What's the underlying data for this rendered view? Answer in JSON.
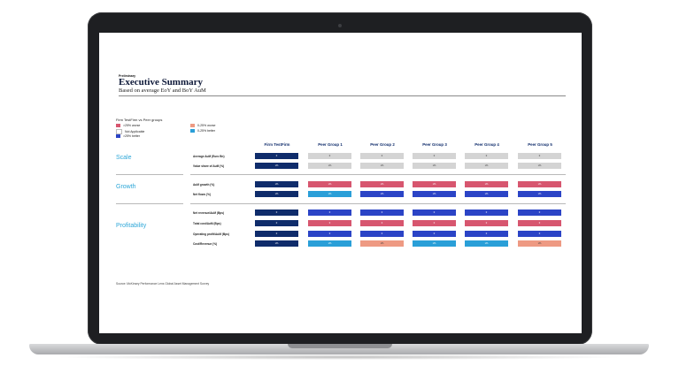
{
  "header": {
    "eyebrow": "Preliminary",
    "title": "Executive Summary",
    "subtitle": "Based on average EoY and BoY AuM"
  },
  "legend": {
    "title": "Firm TestFirm vs Peer groups",
    "items": [
      {
        "label": ">25% worse",
        "color": "#d7566f"
      },
      {
        "label": "Not Applicable",
        "color": "#ffffff"
      },
      {
        "label": ">25% better",
        "color": "#2b44c6"
      },
      {
        "label": "0-25% worse",
        "color": "#ee9a83"
      },
      {
        "label": "0-25% better",
        "color": "#2a9fd8"
      }
    ]
  },
  "sections": [
    "Scale",
    "Growth",
    "Profitability"
  ],
  "columns": [
    "Firm TestFirm",
    "Peer Group 1",
    "Peer Group 2",
    "Peer Group 3",
    "Peer Group 4",
    "Peer Group 5"
  ],
  "rows": [
    {
      "label": "Average AuM (Euro Bn)",
      "cells": [
        {
          "text": "0",
          "cls": "c-navy"
        },
        {
          "text": "0",
          "cls": "c-grey"
        },
        {
          "text": "0",
          "cls": "c-grey"
        },
        {
          "text": "0",
          "cls": "c-grey"
        },
        {
          "text": "0",
          "cls": "c-grey"
        },
        {
          "text": "0",
          "cls": "c-grey"
        }
      ]
    },
    {
      "label": "Value share of AuM (%)",
      "cells": [
        {
          "text": "x%",
          "cls": "c-navy"
        },
        {
          "text": "x%",
          "cls": "c-grey"
        },
        {
          "text": "x%",
          "cls": "c-grey"
        },
        {
          "text": "x%",
          "cls": "c-grey"
        },
        {
          "text": "x%",
          "cls": "c-grey"
        },
        {
          "text": "x%",
          "cls": "c-grey"
        }
      ]
    },
    {
      "label": "AuM growth (%)",
      "cells": [
        {
          "text": "x%",
          "cls": "c-navy"
        },
        {
          "text": "x%",
          "cls": "c-pink"
        },
        {
          "text": "x%",
          "cls": "c-pink"
        },
        {
          "text": "x%",
          "cls": "c-pink"
        },
        {
          "text": "x%",
          "cls": "c-pink"
        },
        {
          "text": "x%",
          "cls": "c-pink"
        }
      ]
    },
    {
      "label": "Net flows (%)",
      "cells": [
        {
          "text": "x%",
          "cls": "c-navy"
        },
        {
          "text": "x%",
          "cls": "c-cyan"
        },
        {
          "text": "x%",
          "cls": "c-blue"
        },
        {
          "text": "x%",
          "cls": "c-blue"
        },
        {
          "text": "x%",
          "cls": "c-blue"
        },
        {
          "text": "x%",
          "cls": "c-blue"
        }
      ]
    },
    {
      "label": "Net revenue/AuM (Bps)",
      "cells": [
        {
          "text": "0",
          "cls": "c-navy"
        },
        {
          "text": "0",
          "cls": "c-blue"
        },
        {
          "text": "0",
          "cls": "c-blue"
        },
        {
          "text": "0",
          "cls": "c-blue"
        },
        {
          "text": "0",
          "cls": "c-blue"
        },
        {
          "text": "0",
          "cls": "c-blue"
        }
      ]
    },
    {
      "label": "Total cost/AuM (Bps)",
      "cells": [
        {
          "text": "0",
          "cls": "c-navy"
        },
        {
          "text": "0",
          "cls": "c-pink"
        },
        {
          "text": "0",
          "cls": "c-pink"
        },
        {
          "text": "0",
          "cls": "c-pink"
        },
        {
          "text": "0",
          "cls": "c-pink"
        },
        {
          "text": "0",
          "cls": "c-pink"
        }
      ]
    },
    {
      "label": "Operating profit/AuM (Bps)",
      "cells": [
        {
          "text": "0",
          "cls": "c-navy"
        },
        {
          "text": "0",
          "cls": "c-blue"
        },
        {
          "text": "0",
          "cls": "c-blue"
        },
        {
          "text": "0",
          "cls": "c-blue"
        },
        {
          "text": "0",
          "cls": "c-blue"
        },
        {
          "text": "0",
          "cls": "c-blue"
        }
      ]
    },
    {
      "label": "Cost/Revenue (%)",
      "cells": [
        {
          "text": "x%",
          "cls": "c-navy"
        },
        {
          "text": "x%",
          "cls": "c-cyan"
        },
        {
          "text": "x%",
          "cls": "c-salmon"
        },
        {
          "text": "x%",
          "cls": "c-cyan"
        },
        {
          "text": "x%",
          "cls": "c-cyan"
        },
        {
          "text": "x%",
          "cls": "c-salmon"
        }
      ]
    }
  ],
  "footer": {
    "source": "Source: McKinsey Performance Lens Global Asset Management Survey"
  }
}
